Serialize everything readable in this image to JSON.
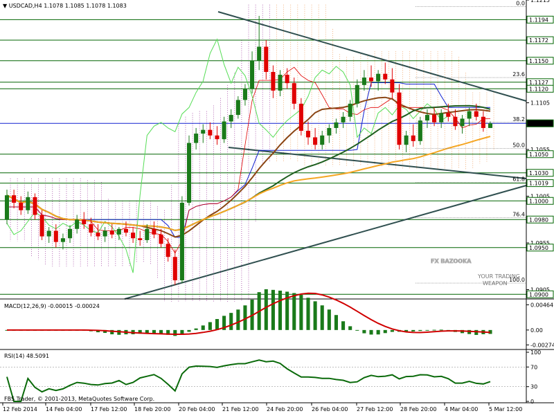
{
  "header": {
    "symbol_tf": "USDCAD,H4",
    "ohlc": "1.1078 1.1085 1.1078 1.1083"
  },
  "colors": {
    "bull": "#1a7a1a",
    "bear": "#e00000",
    "ma_fast": "#8b4513",
    "ma_mid": "#1f5f1f",
    "ma_slow": "#f5a623",
    "kijun": "#1020d0",
    "tenkan": "#e00000",
    "chikou": "#55dd55",
    "trend": "#2f4f4f",
    "hline": "#006400",
    "macd_signal": "#d00000",
    "rsi": "#0a6a0a"
  },
  "chart_data": [
    {
      "type": "candlestick",
      "title": "USDCAD,H4",
      "ylim": [
        1.0895,
        1.1215
      ],
      "yticks": [
        "1.1215",
        "1.1105",
        "1.1055",
        "1.1005",
        "1.0955",
        "1.0905"
      ],
      "x_labels": [
        "12 Feb 2014",
        "14 Feb 04:00",
        "17 Feb 12:00",
        "18 Feb 20:00",
        "20 Feb 04:00",
        "21 Feb 12:00",
        "24 Feb 20:00",
        "26 Feb 04:00",
        "27 Feb 12:00",
        "28 Feb 20:00",
        "4 Mar 04:00",
        "5 Mar 12:00"
      ],
      "levels": [
        {
          "price": 1.1194,
          "label": "1.1194"
        },
        {
          "price": 1.1172,
          "label": "1.1172"
        },
        {
          "price": 1.115,
          "label": "1.1150"
        },
        {
          "price": 1.1127,
          "label": "1.1127"
        },
        {
          "price": 1.112,
          "label": "1.1120"
        },
        {
          "price": 1.1083,
          "label": "1.1083"
        },
        {
          "price": 1.105,
          "label": "1.1050"
        },
        {
          "price": 1.103,
          "label": "1.1030"
        },
        {
          "price": 1.1019,
          "label": "1.1019"
        },
        {
          "price": 1.1,
          "label": "1.1000"
        },
        {
          "price": 1.098,
          "label": "1.0980"
        },
        {
          "price": 1.095,
          "label": "1.0950"
        },
        {
          "price": 1.09,
          "label": "1.0900"
        }
      ],
      "fib_levels": [
        {
          "price": 1.1208,
          "label": "0.0"
        },
        {
          "price": 1.1132,
          "label": "23.6"
        },
        {
          "price": 1.1084,
          "label": "38.2"
        },
        {
          "price": 1.1056,
          "label": "50.0"
        },
        {
          "price": 1.102,
          "label": "61.8"
        },
        {
          "price": 1.0982,
          "label": "76.4"
        },
        {
          "price": 1.0912,
          "label": "100.0"
        }
      ],
      "candles": [
        [
          1.098,
          1.1012,
          1.0975,
          1.1006
        ],
        [
          1.1006,
          1.1012,
          1.0992,
          1.0998
        ],
        [
          1.0998,
          1.1005,
          1.0985,
          1.099
        ],
        [
          1.099,
          1.101,
          1.0986,
          1.1004
        ],
        [
          1.1004,
          1.1008,
          1.098,
          1.0985
        ],
        [
          1.0985,
          1.099,
          1.0958,
          1.0962
        ],
        [
          1.0962,
          1.0972,
          1.0955,
          1.0968
        ],
        [
          1.0968,
          1.0975,
          1.095,
          1.0956
        ],
        [
          1.0956,
          1.0965,
          1.0948,
          1.096
        ],
        [
          1.096,
          1.0974,
          1.0955,
          1.097
        ],
        [
          1.097,
          1.0985,
          1.0965,
          1.098
        ],
        [
          1.098,
          1.0988,
          1.097,
          1.0975
        ],
        [
          1.0975,
          1.0982,
          1.0962,
          1.0966
        ],
        [
          1.0966,
          1.0975,
          1.0958,
          1.0962
        ],
        [
          1.0962,
          1.0972,
          1.0956,
          1.0968
        ],
        [
          1.0968,
          1.0975,
          1.096,
          1.0964
        ],
        [
          1.0964,
          1.0972,
          1.0958,
          1.097
        ],
        [
          1.097,
          1.0978,
          1.0962,
          1.0966
        ],
        [
          1.0966,
          1.0972,
          1.0955,
          1.096
        ],
        [
          1.096,
          1.0968,
          1.0952,
          1.0958
        ],
        [
          1.0958,
          1.0975,
          1.0955,
          1.097
        ],
        [
          1.097,
          1.0978,
          1.096,
          1.0964
        ],
        [
          1.0964,
          1.097,
          1.095,
          1.0954
        ],
        [
          1.0954,
          1.096,
          1.0935,
          1.094
        ],
        [
          1.094,
          1.0948,
          1.091,
          1.0915
        ],
        [
          1.0915,
          1.1005,
          1.0912,
          1.0998
        ],
        [
          1.0998,
          1.107,
          1.0995,
          1.1062
        ],
        [
          1.1062,
          1.1078,
          1.1055,
          1.1072
        ],
        [
          1.1072,
          1.1082,
          1.1062,
          1.1076
        ],
        [
          1.1076,
          1.1084,
          1.1066,
          1.107
        ],
        [
          1.107,
          1.108,
          1.106,
          1.1066
        ],
        [
          1.1066,
          1.109,
          1.1062,
          1.1085
        ],
        [
          1.1085,
          1.1098,
          1.1078,
          1.1092
        ],
        [
          1.1092,
          1.1112,
          1.1088,
          1.1108
        ],
        [
          1.1108,
          1.1125,
          1.1102,
          1.112
        ],
        [
          1.112,
          1.116,
          1.1115,
          1.115
        ],
        [
          1.115,
          1.1198,
          1.114,
          1.1165
        ],
        [
          1.1165,
          1.1172,
          1.113,
          1.1138
        ],
        [
          1.1138,
          1.1145,
          1.111,
          1.1118
        ],
        [
          1.1118,
          1.114,
          1.1112,
          1.1135
        ],
        [
          1.1135,
          1.1142,
          1.112,
          1.1126
        ],
        [
          1.1126,
          1.1132,
          1.1098,
          1.1104
        ],
        [
          1.1104,
          1.111,
          1.107,
          1.1075
        ],
        [
          1.1075,
          1.1085,
          1.106,
          1.1068
        ],
        [
          1.1068,
          1.1078,
          1.1055,
          1.106
        ],
        [
          1.106,
          1.1075,
          1.1055,
          1.107
        ],
        [
          1.107,
          1.1082,
          1.1062,
          1.1078
        ],
        [
          1.1078,
          1.1088,
          1.1072,
          1.1084
        ],
        [
          1.1084,
          1.1095,
          1.1078,
          1.109
        ],
        [
          1.109,
          1.1108,
          1.1085,
          1.1104
        ],
        [
          1.1104,
          1.113,
          1.11,
          1.1124
        ],
        [
          1.1124,
          1.114,
          1.1118,
          1.1132
        ],
        [
          1.1132,
          1.1145,
          1.1122,
          1.1128
        ],
        [
          1.1128,
          1.114,
          1.1118,
          1.1136
        ],
        [
          1.1136,
          1.1148,
          1.1125,
          1.113
        ],
        [
          1.113,
          1.1142,
          1.111,
          1.1116
        ],
        [
          1.1116,
          1.1125,
          1.1055,
          1.106
        ],
        [
          1.106,
          1.1075,
          1.1052,
          1.107
        ],
        [
          1.107,
          1.1082,
          1.1058,
          1.1064
        ],
        [
          1.1064,
          1.109,
          1.106,
          1.1086
        ],
        [
          1.1086,
          1.1098,
          1.1078,
          1.1092
        ],
        [
          1.1092,
          1.11,
          1.108,
          1.1084
        ],
        [
          1.1084,
          1.1098,
          1.1078,
          1.1094
        ],
        [
          1.1094,
          1.1104,
          1.1085,
          1.109
        ],
        [
          1.109,
          1.1098,
          1.1076,
          1.108
        ],
        [
          1.108,
          1.1092,
          1.1072,
          1.1088
        ],
        [
          1.1088,
          1.11,
          1.108,
          1.1096
        ],
        [
          1.1096,
          1.1104,
          1.1086,
          1.109
        ],
        [
          1.109,
          1.1096,
          1.1074,
          1.1078
        ],
        [
          1.1078,
          1.1085,
          1.1078,
          1.1083
        ]
      ]
    },
    {
      "type": "bar",
      "title": "MACD(12,26,9) -0.00015 -0.00024",
      "yticks": [
        "0.00464",
        "0.00",
        "-0.00274"
      ],
      "ylim": [
        -0.0032,
        0.0052
      ]
    },
    {
      "type": "line",
      "title": "RSI(14) 48.5091",
      "yticks": [
        "100",
        "70",
        "30",
        "0"
      ],
      "ylim": [
        0,
        100
      ]
    }
  ],
  "footer": {
    "copyright": "FBS Trader, © 2001-2013, MetaQuotes Software Corp."
  },
  "watermark": {
    "brand": "FX BAZOOKA",
    "tagline_1": "YOUR TRADING",
    "tagline_2": "WEAPON"
  }
}
